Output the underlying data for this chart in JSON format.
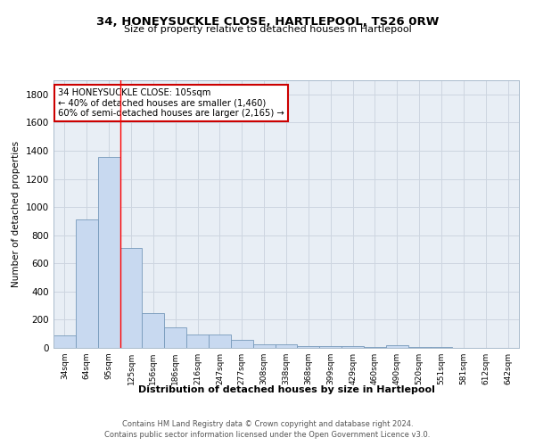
{
  "title1": "34, HONEYSUCKLE CLOSE, HARTLEPOOL, TS26 0RW",
  "title2": "Size of property relative to detached houses in Hartlepool",
  "xlabel": "Distribution of detached houses by size in Hartlepool",
  "ylabel": "Number of detached properties",
  "categories": [
    "34sqm",
    "64sqm",
    "95sqm",
    "125sqm",
    "156sqm",
    "186sqm",
    "216sqm",
    "247sqm",
    "277sqm",
    "308sqm",
    "338sqm",
    "368sqm",
    "399sqm",
    "429sqm",
    "460sqm",
    "490sqm",
    "520sqm",
    "551sqm",
    "581sqm",
    "612sqm",
    "642sqm"
  ],
  "values": [
    90,
    910,
    1355,
    710,
    250,
    145,
    95,
    95,
    55,
    25,
    25,
    15,
    10,
    10,
    5,
    20,
    5,
    5,
    2,
    2,
    2
  ],
  "bar_color": "#c8d9f0",
  "bar_edge_color": "#7799bb",
  "red_line_x": 2.5,
  "annotation_line1": "34 HONEYSUCKLE CLOSE: 105sqm",
  "annotation_line2": "← 40% of detached houses are smaller (1,460)",
  "annotation_line3": "60% of semi-detached houses are larger (2,165) →",
  "annotation_box_color": "#ffffff",
  "annotation_box_edge": "#cc0000",
  "grid_color": "#cdd5e0",
  "background_color": "#e8eef5",
  "footer1": "Contains HM Land Registry data © Crown copyright and database right 2024.",
  "footer2": "Contains public sector information licensed under the Open Government Licence v3.0.",
  "ylim": [
    0,
    1900
  ],
  "yticks": [
    0,
    200,
    400,
    600,
    800,
    1000,
    1200,
    1400,
    1600,
    1800
  ]
}
